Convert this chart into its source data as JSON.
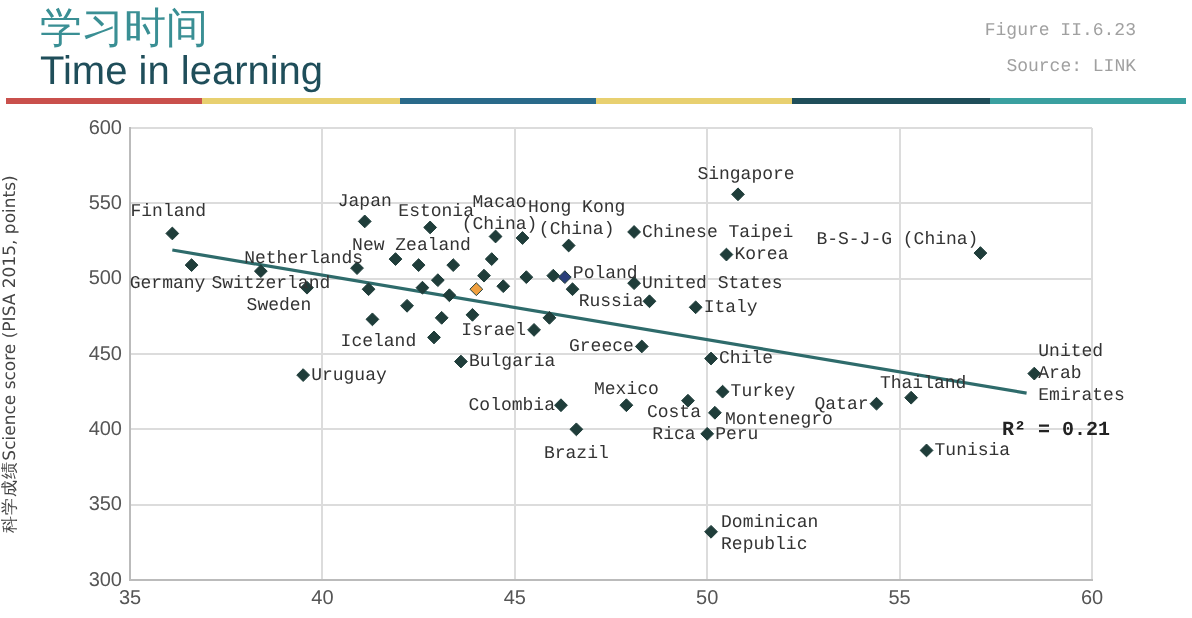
{
  "chart_data": {
    "type": "scatter",
    "title": "学习时间",
    "subtitle": "Time in learning",
    "ylabel": "科学成绩Science score (PISA 2015, points)",
    "xlim": [
      35,
      60
    ],
    "xticks": [
      35,
      40,
      45,
      50,
      55,
      60
    ],
    "ylim": [
      300,
      600
    ],
    "yticks": [
      300,
      350,
      400,
      450,
      500,
      550,
      600
    ],
    "grid": true,
    "series": [
      {
        "marker": "diamond",
        "color": "#1f3d3a",
        "colors": [
          "#1f3d3a",
          "#1f3d3a",
          "#1f3d3a",
          "#1f3d3a",
          "#1f3d3a",
          "#1f3d3a",
          "#1f3d3a",
          "#1f3d3a",
          "#1f3d3a",
          "#1f3d3a",
          "#1f3d3a",
          "#1f3d3a",
          "#1f3d3a",
          "#1f3d3a",
          "#1f3d3a",
          "#1f3d3a",
          "#1f3d3a",
          "#1f3d3a",
          "#1f3d3a",
          "#1f3d3a",
          "#f0a040",
          "#1f3d3a",
          "#1f3d3a",
          "#1f3d3a",
          "#1f3d3a",
          "#1f3d3a",
          "#1f3d3a",
          "#1f3d3a",
          "#1f3d3a",
          "#2a3f7a",
          "#1f3d3a",
          "#1f3d3a",
          "#1f3d3a",
          "#1f3d3a",
          "#1f3d3a",
          "#1f3d3a",
          "#1f3d3a",
          "#1f3d3a",
          "#1f3d3a",
          "#1f3d3a",
          "#1f3d3a",
          "#1f3d3a",
          "#1f3d3a",
          "#1f3d3a",
          "#1f3d3a",
          "#1f3d3a",
          "#1f3d3a",
          "#1f3d3a",
          "#1f3d3a",
          "#1f3d3a",
          "#1f3d3a",
          "#1f3d3a",
          "#1f3d3a",
          "#1f3d3a",
          "#1f3d3a"
        ],
        "x": [
          36.1,
          36.6,
          38.4,
          39.6,
          39.5,
          40.9,
          41.1,
          41.3,
          41.9,
          42.8,
          41.2,
          42.2,
          42.5,
          42.6,
          42.9,
          43.0,
          43.1,
          43.4,
          43.3,
          43.9,
          44.0,
          44.2,
          44.5,
          44.4,
          44.7,
          43.6,
          45.2,
          45.3,
          46.0,
          46.3,
          46.4,
          46.5,
          45.9,
          45.5,
          46.2,
          46.6,
          47.9,
          48.3,
          48.1,
          48.1,
          48.5,
          49.7,
          50.8,
          50.5,
          50.1,
          49.5,
          50.2,
          50.4,
          50.0,
          50.1,
          57.1,
          58.5,
          55.3,
          54.4,
          55.7
        ],
        "values": [
          530,
          509,
          505,
          494,
          436,
          507,
          538,
          473,
          513,
          534,
          493,
          482,
          509,
          494,
          461,
          499,
          474,
          509,
          489,
          476,
          493,
          502,
          528,
          513,
          495,
          445,
          527,
          501,
          502,
          501,
          522,
          493,
          474,
          466,
          416,
          400,
          416,
          455,
          531,
          497,
          485,
          481,
          556,
          516,
          447,
          419,
          411,
          425,
          397,
          332,
          517,
          437,
          421,
          417,
          386
        ]
      },
      {
        "type": "line",
        "marker": "none",
        "color": "#2e6b6b",
        "x": [
          36.1,
          58.3
        ],
        "values": [
          519,
          424
        ]
      }
    ],
    "annotations": [
      "Figure II.6.23",
      "Source: LINK",
      "R² = 0.21",
      {
        "text": "Finland",
        "x": 36.1,
        "y": 530
      },
      {
        "text": "Germany",
        "x": 36.6,
        "y": 509
      },
      {
        "text": "Switzerland",
        "x": 38.4,
        "y": 505
      },
      {
        "text": "Sweden",
        "x": 39.6,
        "y": 494
      },
      {
        "text": "Uruguay",
        "x": 39.5,
        "y": 436
      },
      {
        "text": "Netherlands",
        "x": 40.9,
        "y": 507
      },
      {
        "text": "Japan",
        "x": 41.1,
        "y": 538
      },
      {
        "text": "Iceland",
        "x": 41.3,
        "y": 473
      },
      {
        "text": "New Zealand",
        "x": 41.9,
        "y": 513
      },
      {
        "text": "Estonia",
        "x": 42.8,
        "y": 534
      },
      {
        "text": "Macao\n(China)",
        "x": 44.5,
        "y": 528
      },
      {
        "text": "Bulgaria",
        "x": 43.6,
        "y": 445
      },
      {
        "text": "Hong Kong\n(China)",
        "x": 46.4,
        "y": 522
      },
      {
        "text": "Israel",
        "x": 45.5,
        "y": 466
      },
      {
        "text": "Poland",
        "x": 46.3,
        "y": 501
      },
      {
        "text": "Colombia",
        "x": 46.2,
        "y": 416
      },
      {
        "text": "Brazil",
        "x": 46.6,
        "y": 400
      },
      {
        "text": "Mexico",
        "x": 47.9,
        "y": 416
      },
      {
        "text": "Greece",
        "x": 48.3,
        "y": 455
      },
      {
        "text": "Chinese Taipei",
        "x": 48.1,
        "y": 531
      },
      {
        "text": "United States",
        "x": 48.1,
        "y": 497
      },
      {
        "text": "Russia",
        "x": 48.5,
        "y": 485
      },
      {
        "text": "Italy",
        "x": 49.7,
        "y": 481
      },
      {
        "text": "Singapore",
        "x": 50.8,
        "y": 556
      },
      {
        "text": "Korea",
        "x": 50.5,
        "y": 516
      },
      {
        "text": "Chile",
        "x": 50.1,
        "y": 447
      },
      {
        "text": "Costa\nRica",
        "x": 49.5,
        "y": 419
      },
      {
        "text": "Montenegro",
        "x": 50.2,
        "y": 411
      },
      {
        "text": "Turkey",
        "x": 50.4,
        "y": 425
      },
      {
        "text": "Peru",
        "x": 50.0,
        "y": 397
      },
      {
        "text": "Dominican\nRepublic",
        "x": 50.1,
        "y": 332
      },
      {
        "text": "B-S-J-G (China)",
        "x": 57.1,
        "y": 517
      },
      {
        "text": "United\nArab\nEmirates",
        "x": 58.5,
        "y": 437
      },
      {
        "text": "Thailand",
        "x": 55.3,
        "y": 421
      },
      {
        "text": "Qatar",
        "x": 54.4,
        "y": 417
      },
      {
        "text": "Tunisia",
        "x": 55.7,
        "y": 386
      }
    ]
  }
}
